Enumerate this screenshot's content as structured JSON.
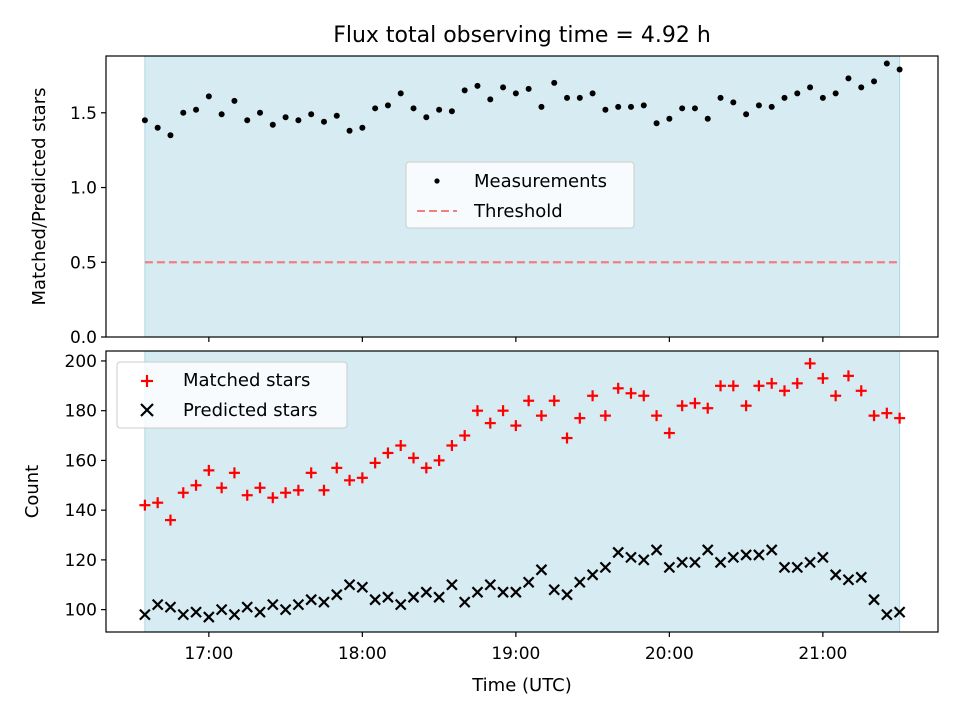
{
  "title": "Flux total observing time = 4.92 h",
  "colors": {
    "shade": "#add8e6",
    "measurement": "#000000",
    "threshold": "#f08080",
    "matched": "#ff0000",
    "predicted": "#000000"
  },
  "chart_data": [
    {
      "type": "scatter",
      "panel": "top",
      "title": "Flux total observing time = 4.92 h",
      "xlabel": "",
      "ylabel": "Matched/Predicted stars",
      "ylim": [
        0,
        1.88
      ],
      "yticks": [
        0.0,
        0.5,
        1.0,
        1.5
      ],
      "ytick_labels": [
        "0.0",
        "0.5",
        "1.0",
        "1.5"
      ],
      "legend_position": "center",
      "shaded_span": [
        "16:35",
        "21:30"
      ],
      "x": [
        "16:35",
        "16:40",
        "16:45",
        "16:50",
        "16:55",
        "17:00",
        "17:05",
        "17:10",
        "17:15",
        "17:20",
        "17:25",
        "17:30",
        "17:35",
        "17:40",
        "17:45",
        "17:50",
        "17:55",
        "18:00",
        "18:05",
        "18:10",
        "18:15",
        "18:20",
        "18:25",
        "18:30",
        "18:35",
        "18:40",
        "18:45",
        "18:50",
        "18:55",
        "19:00",
        "19:05",
        "19:10",
        "19:15",
        "19:20",
        "19:25",
        "19:30",
        "19:35",
        "19:40",
        "19:45",
        "19:50",
        "19:55",
        "20:00",
        "20:05",
        "20:10",
        "20:15",
        "20:20",
        "20:25",
        "20:30",
        "20:35",
        "20:40",
        "20:45",
        "20:50",
        "20:55",
        "21:00",
        "21:05",
        "21:10",
        "21:15",
        "21:20",
        "21:25",
        "21:30"
      ],
      "series": [
        {
          "name": "Measurements",
          "marker": "dot",
          "values": [
            1.45,
            1.4,
            1.35,
            1.5,
            1.52,
            1.61,
            1.49,
            1.58,
            1.45,
            1.5,
            1.42,
            1.47,
            1.45,
            1.49,
            1.44,
            1.48,
            1.38,
            1.4,
            1.53,
            1.55,
            1.63,
            1.53,
            1.47,
            1.52,
            1.51,
            1.65,
            1.68,
            1.59,
            1.67,
            1.63,
            1.66,
            1.54,
            1.7,
            1.6,
            1.6,
            1.63,
            1.52,
            1.54,
            1.54,
            1.55,
            1.43,
            1.46,
            1.53,
            1.53,
            1.46,
            1.6,
            1.57,
            1.49,
            1.55,
            1.54,
            1.6,
            1.63,
            1.67,
            1.6,
            1.63,
            1.73,
            1.67,
            1.71,
            1.83,
            1.79
          ]
        },
        {
          "name": "Threshold",
          "style": "dashed",
          "values": [
            0.5,
            0.5
          ]
        }
      ]
    },
    {
      "type": "scatter",
      "panel": "bottom",
      "xlabel": "Time (UTC)",
      "ylabel": "Count",
      "ylim": [
        91,
        204
      ],
      "yticks": [
        100,
        120,
        140,
        160,
        180,
        200
      ],
      "ytick_labels": [
        "100",
        "120",
        "140",
        "160",
        "180",
        "200"
      ],
      "xticks": [
        "17:00",
        "18:00",
        "19:00",
        "20:00",
        "21:00"
      ],
      "legend_position": "upper left",
      "shaded_span": [
        "16:35",
        "21:30"
      ],
      "x": [
        "16:35",
        "16:40",
        "16:45",
        "16:50",
        "16:55",
        "17:00",
        "17:05",
        "17:10",
        "17:15",
        "17:20",
        "17:25",
        "17:30",
        "17:35",
        "17:40",
        "17:45",
        "17:50",
        "17:55",
        "18:00",
        "18:05",
        "18:10",
        "18:15",
        "18:20",
        "18:25",
        "18:30",
        "18:35",
        "18:40",
        "18:45",
        "18:50",
        "18:55",
        "19:00",
        "19:05",
        "19:10",
        "19:15",
        "19:20",
        "19:25",
        "19:30",
        "19:35",
        "19:40",
        "19:45",
        "19:50",
        "19:55",
        "20:00",
        "20:05",
        "20:10",
        "20:15",
        "20:20",
        "20:25",
        "20:30",
        "20:35",
        "20:40",
        "20:45",
        "20:50",
        "20:55",
        "21:00",
        "21:05",
        "21:10",
        "21:15",
        "21:20",
        "21:25",
        "21:30"
      ],
      "series": [
        {
          "name": "Matched stars",
          "marker": "plus",
          "values": [
            142,
            143,
            136,
            147,
            150,
            156,
            149,
            155,
            146,
            149,
            145,
            147,
            148,
            155,
            148,
            157,
            152,
            153,
            159,
            163,
            166,
            161,
            157,
            160,
            166,
            170,
            180,
            175,
            180,
            174,
            184,
            178,
            184,
            169,
            177,
            186,
            178,
            189,
            187,
            186,
            178,
            171,
            182,
            183,
            181,
            190,
            190,
            182,
            190,
            191,
            188,
            191,
            199,
            193,
            186,
            194,
            188,
            178,
            179,
            177
          ]
        },
        {
          "name": "Predicted stars",
          "marker": "x",
          "values": [
            98,
            102,
            101,
            98,
            99,
            97,
            100,
            98,
            101,
            99,
            102,
            100,
            102,
            104,
            103,
            106,
            110,
            109,
            104,
            105,
            102,
            105,
            107,
            105,
            110,
            103,
            107,
            110,
            107,
            107,
            111,
            116,
            108,
            106,
            111,
            114,
            117,
            123,
            121,
            120,
            124,
            117,
            119,
            119,
            124,
            119,
            121,
            122,
            122,
            124,
            117,
            117,
            119,
            121,
            114,
            112,
            113,
            104,
            98,
            99
          ]
        }
      ]
    }
  ]
}
